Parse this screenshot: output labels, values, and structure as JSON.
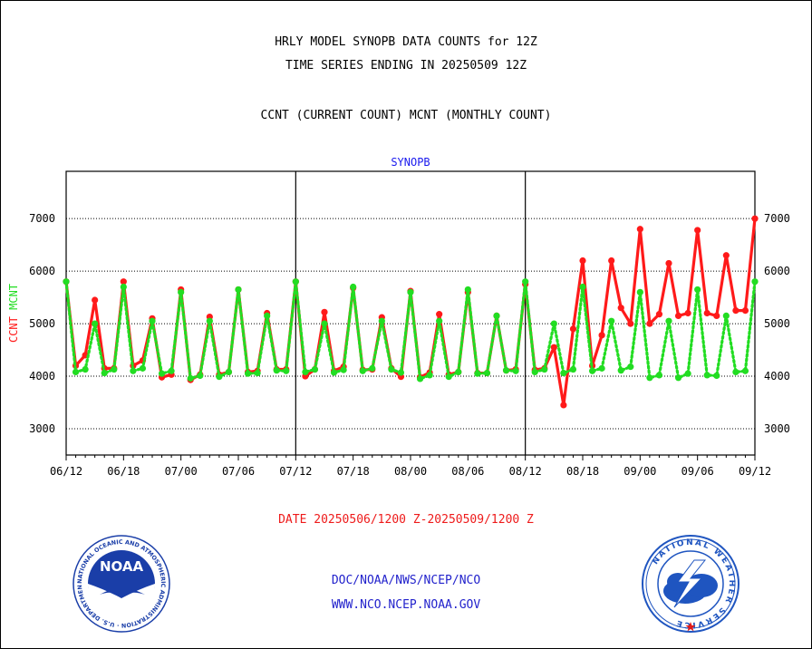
{
  "titles": {
    "line1": "HRLY MODEL SYNOPB DATA COUNTS for 12Z",
    "line2": "TIME SERIES ENDING IN 20250509 12Z",
    "line3": "CCNT (CURRENT COUNT) MCNT (MONTHLY COUNT)"
  },
  "footer": {
    "date_range": "DATE 20250506/1200 Z-20250509/1200 Z",
    "org_line": "DOC/NOAA/NWS/NCEP/NCO",
    "url_line": "WWW.NCO.NCEP.NOAA.GOV"
  },
  "logos": {
    "left": {
      "icon": "noaa-logo-icon",
      "text": "NOAA",
      "ring_text": "NATIONAL OCEANIC AND ATMOSPHERIC ADMINISTRATION · U.S. DEPARTMENT OF COMMERCE"
    },
    "right": {
      "icon": "nws-logo-icon",
      "ring_text": "NATIONAL WEATHER SERVICE"
    }
  },
  "colors": {
    "ccnt": "#ff1a1a",
    "mcnt": "#22dd22",
    "panel_title": "#1a1aee",
    "date_range": "#ee1a1a",
    "org_text": "#2222cc",
    "noaa_blue": "#1a3ea8",
    "nws_blue": "#1f55c0"
  },
  "chart_data": {
    "type": "line",
    "title": "SYNOPB",
    "ylabel_parts": [
      {
        "text": "CCNT",
        "series": "ccnt"
      },
      {
        "text": "MCNT",
        "series": "mcnt"
      }
    ],
    "ylim": [
      2500,
      7900
    ],
    "yticks": [
      3000,
      4000,
      5000,
      6000,
      7000
    ],
    "grid": true,
    "x_tick_labels": [
      "06/12",
      "06/18",
      "07/00",
      "07/06",
      "07/12",
      "07/18",
      "08/00",
      "08/06",
      "08/12",
      "08/18",
      "09/00",
      "09/06",
      "09/12"
    ],
    "x_hours_per_tick": 6,
    "panel_dividers_at_tick": [
      4,
      8
    ],
    "series": [
      {
        "name": "CCNT",
        "key": "ccnt",
        "style": "solid",
        "values": [
          5800,
          4200,
          4400,
          5450,
          4150,
          4150,
          5800,
          4200,
          4300,
          5100,
          3980,
          4030,
          5650,
          3930,
          4030,
          5130,
          4030,
          4080,
          5650,
          4080,
          4100,
          5200,
          4130,
          4130,
          5800,
          4000,
          4130,
          5220,
          4100,
          4180,
          5680,
          4120,
          4130,
          5120,
          4150,
          3990,
          5620,
          3980,
          4070,
          5180,
          4030,
          4080,
          5600,
          4060,
          4060,
          5150,
          4110,
          4130,
          5750,
          4120,
          4150,
          4550,
          3450,
          4900,
          6200,
          4200,
          4780,
          6200,
          5300,
          5000,
          6800,
          5000,
          5180,
          6150,
          5150,
          5200,
          6780,
          5200,
          5150,
          6300,
          5250,
          5250,
          7000
        ]
      },
      {
        "name": "MCNT",
        "key": "mcnt",
        "style": "dotted",
        "values": [
          5800,
          4080,
          4130,
          5000,
          4060,
          4130,
          5700,
          4100,
          4150,
          5050,
          4050,
          4100,
          5600,
          3960,
          4010,
          5050,
          3990,
          4080,
          5650,
          4050,
          4060,
          5150,
          4110,
          4100,
          5800,
          4080,
          4130,
          5000,
          4070,
          4120,
          5700,
          4100,
          4150,
          5050,
          4130,
          4070,
          5600,
          3950,
          4020,
          5050,
          3990,
          4080,
          5650,
          4050,
          4060,
          5150,
          4110,
          4100,
          5800,
          4080,
          4130,
          5000,
          4060,
          4130,
          5700,
          4100,
          4150,
          5050,
          4110,
          4180,
          5600,
          3970,
          4020,
          5050,
          3970,
          4050,
          5650,
          4020,
          4010,
          5150,
          4080,
          4100,
          5800
        ]
      }
    ]
  }
}
